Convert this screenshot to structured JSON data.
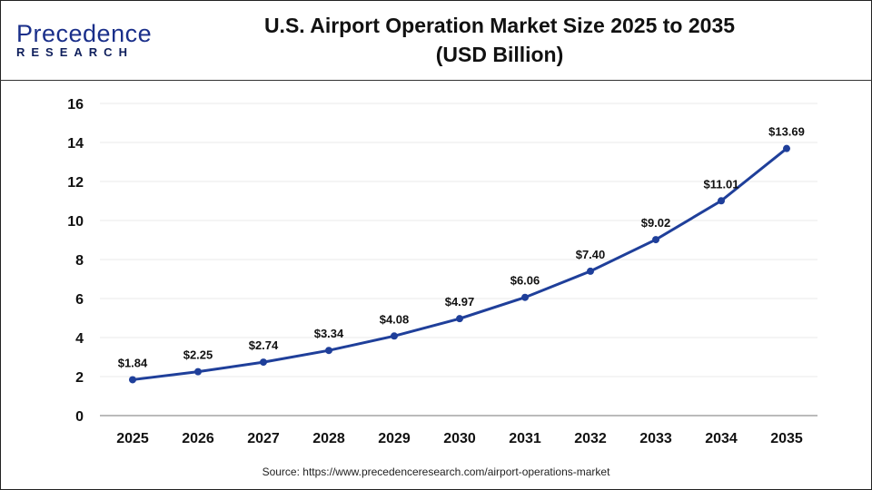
{
  "brand": {
    "line1": "Precedence",
    "line2": "RESEARCH"
  },
  "chart_data": {
    "type": "line",
    "title": "U.S. Airport Operation Market Size 2025 to 2035",
    "subtitle": "(USD Billion)",
    "categories": [
      "2025",
      "2026",
      "2027",
      "2028",
      "2029",
      "2030",
      "2031",
      "2032",
      "2033",
      "2034",
      "2035"
    ],
    "values": [
      1.84,
      2.25,
      2.74,
      3.34,
      4.08,
      4.97,
      6.06,
      7.4,
      9.02,
      11.01,
      13.69
    ],
    "data_labels": [
      "$1.84",
      "$2.25",
      "$2.74",
      "$3.34",
      "$4.08",
      "$4.97",
      "$6.06",
      "$7.40",
      "$9.02",
      "$11.01",
      "$13.69"
    ],
    "yticks": [
      0,
      2,
      4,
      6,
      8,
      10,
      12,
      14,
      16
    ],
    "ylim": [
      0,
      16
    ],
    "grid": true,
    "line_color": "#1f3f9a"
  },
  "source": "Source: https://www.precedenceresearch.com/airport-operations-market"
}
